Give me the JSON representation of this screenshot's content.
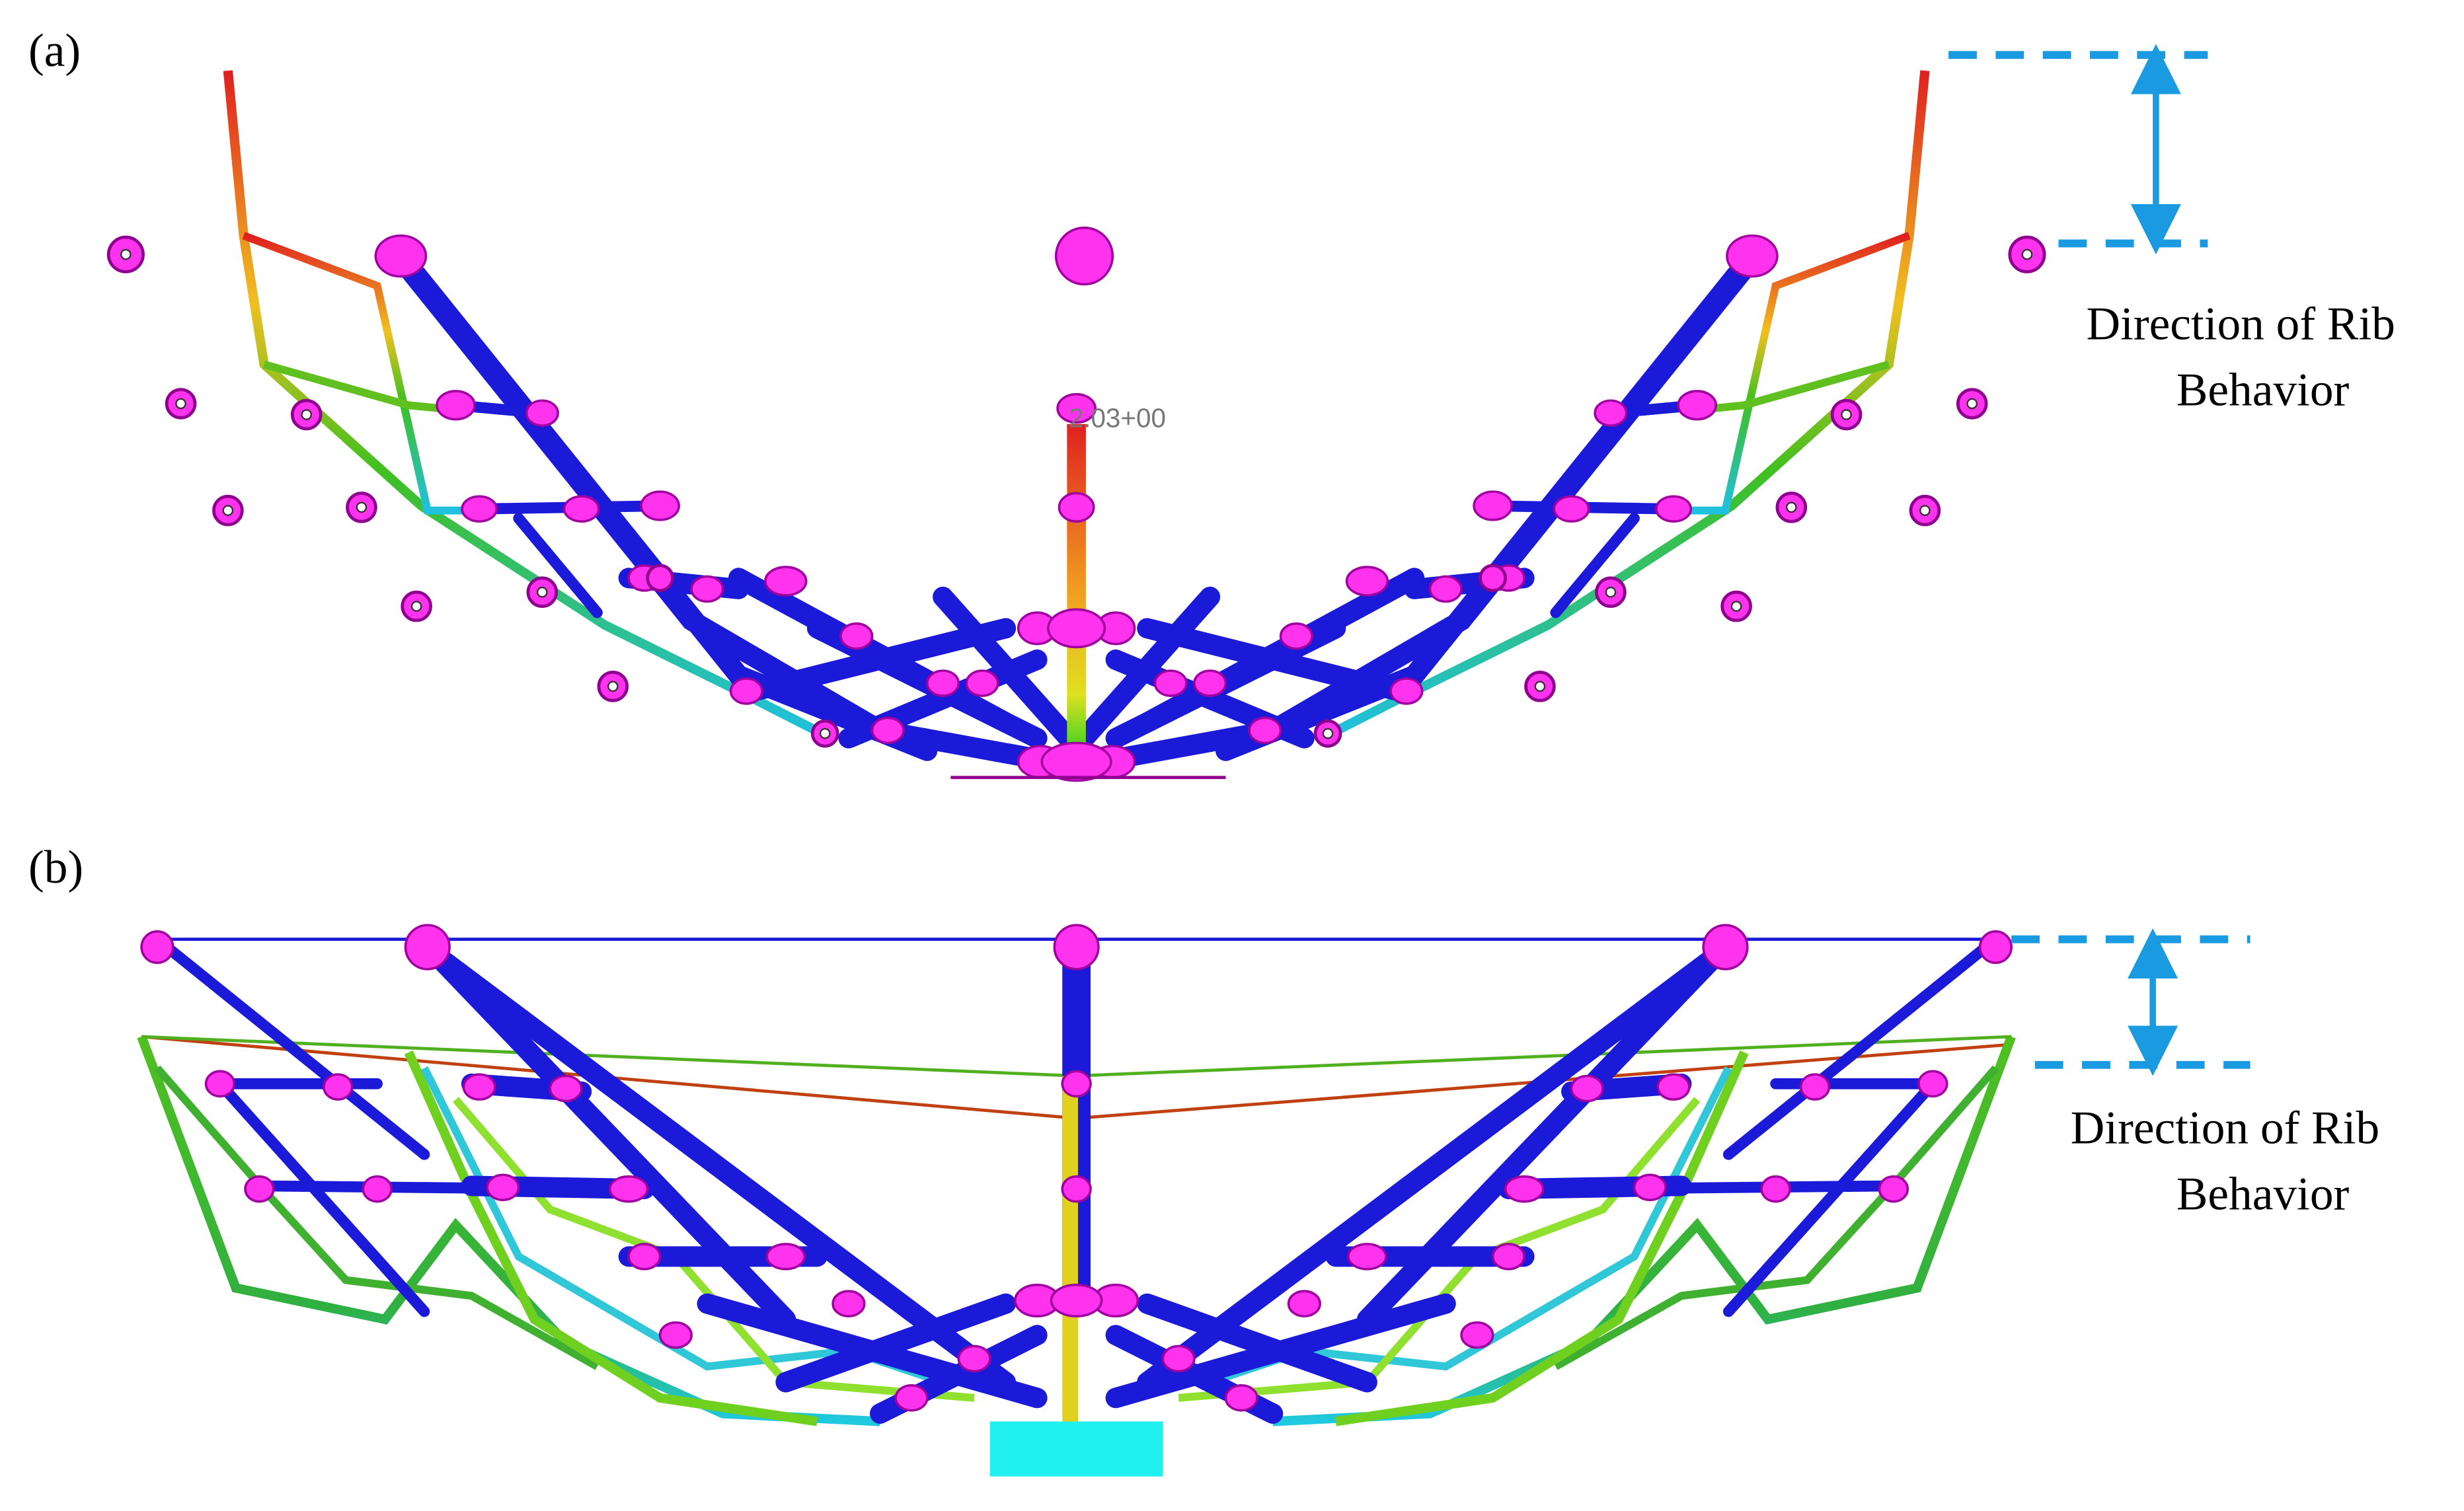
{
  "panels": [
    {
      "label": "(a)",
      "annotation": {
        "line1": "Direction of Rib",
        "line2": "Behavior"
      },
      "contour_label": "2.03+00"
    },
    {
      "label": "(b)",
      "annotation": {
        "line1": "Direction of Rib",
        "line2": "Behavior"
      }
    }
  ]
}
